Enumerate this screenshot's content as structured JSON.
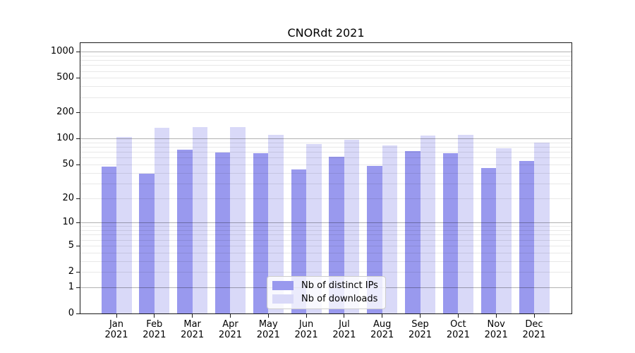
{
  "title": "CNORdt 2021",
  "chart_data": {
    "type": "bar",
    "title": "CNORdt 2021",
    "categories": [
      "Jan 2021",
      "Feb 2021",
      "Mar 2021",
      "Apr 2021",
      "May 2021",
      "Jun 2021",
      "Jul 2021",
      "Aug 2021",
      "Sep 2021",
      "Oct 2021",
      "Nov 2021",
      "Dec 2021"
    ],
    "series": [
      {
        "name": "Nb of distinct IPs",
        "color": "#9999ee",
        "values": [
          47,
          39,
          75,
          69,
          68,
          44,
          62,
          48,
          71,
          68,
          45,
          55
        ]
      },
      {
        "name": "Nb of downloads",
        "color": "#d9d9f8",
        "values": [
          105,
          134,
          137,
          135,
          110,
          86,
          96,
          84,
          109,
          110,
          77,
          89
        ]
      }
    ],
    "xlabel": "",
    "ylabel": "",
    "yscale": "log1p",
    "y_ticks": [
      0,
      1,
      2,
      5,
      10,
      20,
      50,
      100,
      200,
      500,
      1000
    ],
    "ylim": [
      0,
      1254
    ],
    "grid": true,
    "grid_above_bars": true,
    "legend_position": "lower center",
    "colors": {
      "major_grid": "#b0b0b0",
      "minor_grid": "#e8e8e8",
      "spine": "#1a1a1a",
      "text": "#000000",
      "legend_border": "#cccccc",
      "legend_background": "rgba(255,255,255,0.8)"
    }
  }
}
